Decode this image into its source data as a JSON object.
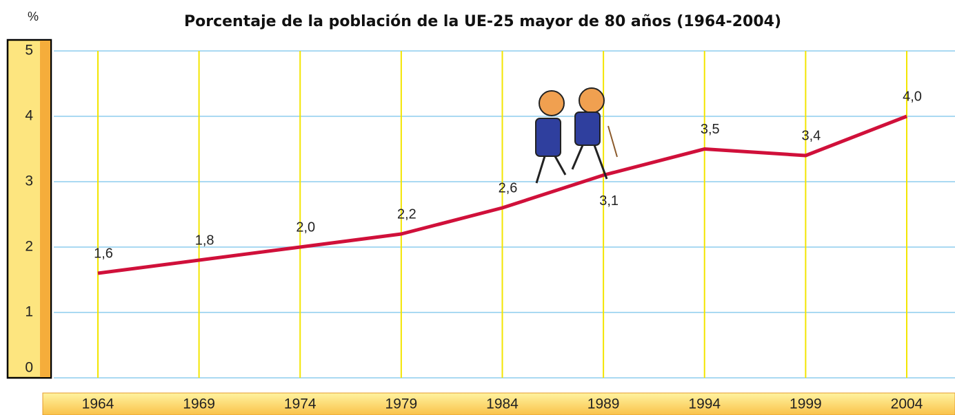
{
  "chart_data": {
    "type": "line",
    "title": "Porcentaje de la población de la UE-25 mayor de 80 años (1964-2004)",
    "y_unit_label": "%",
    "categories": [
      "1964",
      "1969",
      "1974",
      "1979",
      "1984",
      "1989",
      "1994",
      "1999",
      "2004"
    ],
    "series": [
      {
        "color": "#d0103a",
        "values": [
          1.6,
          1.8,
          2.0,
          2.2,
          2.6,
          3.1,
          3.5,
          3.4,
          4.0
        ],
        "value_labels": [
          "1,6",
          "1,8",
          "2,0",
          "2,2",
          "2,6",
          "3,1",
          "3,5",
          "3,4",
          "4,0"
        ]
      }
    ],
    "ylim": [
      0,
      5
    ],
    "yticks": [
      0,
      1,
      2,
      3,
      4,
      5
    ],
    "grid": true,
    "grid_color": "#a9d9f2",
    "category_line_color": "#f3e500"
  }
}
